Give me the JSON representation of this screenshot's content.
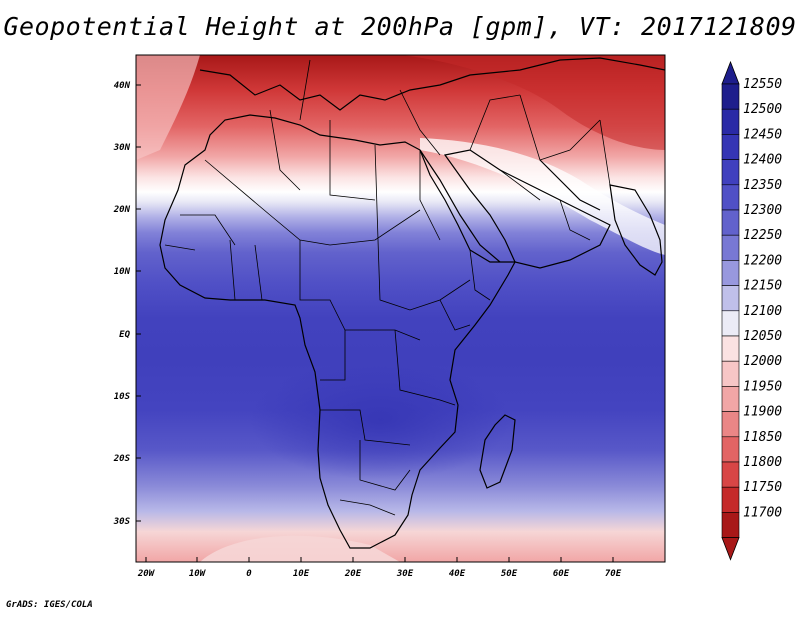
{
  "title": "Geopotential Height at 200hPa [gpm], VT: 2017121809",
  "credit": "GrADS: IGES/COLA",
  "map": {
    "lon_range": [
      -22,
      80
    ],
    "lat_range": [
      -37,
      45
    ],
    "lon_ticks": [
      "20W",
      "10W",
      "0",
      "10E",
      "20E",
      "30E",
      "40E",
      "50E",
      "60E",
      "70E"
    ],
    "lat_ticks": [
      "40N",
      "30N",
      "20N",
      "10N",
      "EQ",
      "10S",
      "20S",
      "30S"
    ],
    "land_outline_color": "#000000"
  },
  "colorbar": {
    "levels": [
      "12550",
      "12500",
      "12450",
      "12400",
      "12350",
      "12300",
      "12250",
      "12200",
      "12150",
      "12100",
      "12050",
      "12000",
      "11950",
      "11900",
      "11850",
      "11800",
      "11750",
      "11700"
    ],
    "colors": [
      "#1e1e8c",
      "#2a2aa6",
      "#3535b4",
      "#4040be",
      "#5050c6",
      "#6262cc",
      "#7878d4",
      "#9898de",
      "#c0c0ea",
      "#ececf6",
      "#fbe2e2",
      "#f7c6c6",
      "#f1a6a6",
      "#ea8686",
      "#e26464",
      "#d84646",
      "#c52a2a",
      "#a81818"
    ]
  }
}
